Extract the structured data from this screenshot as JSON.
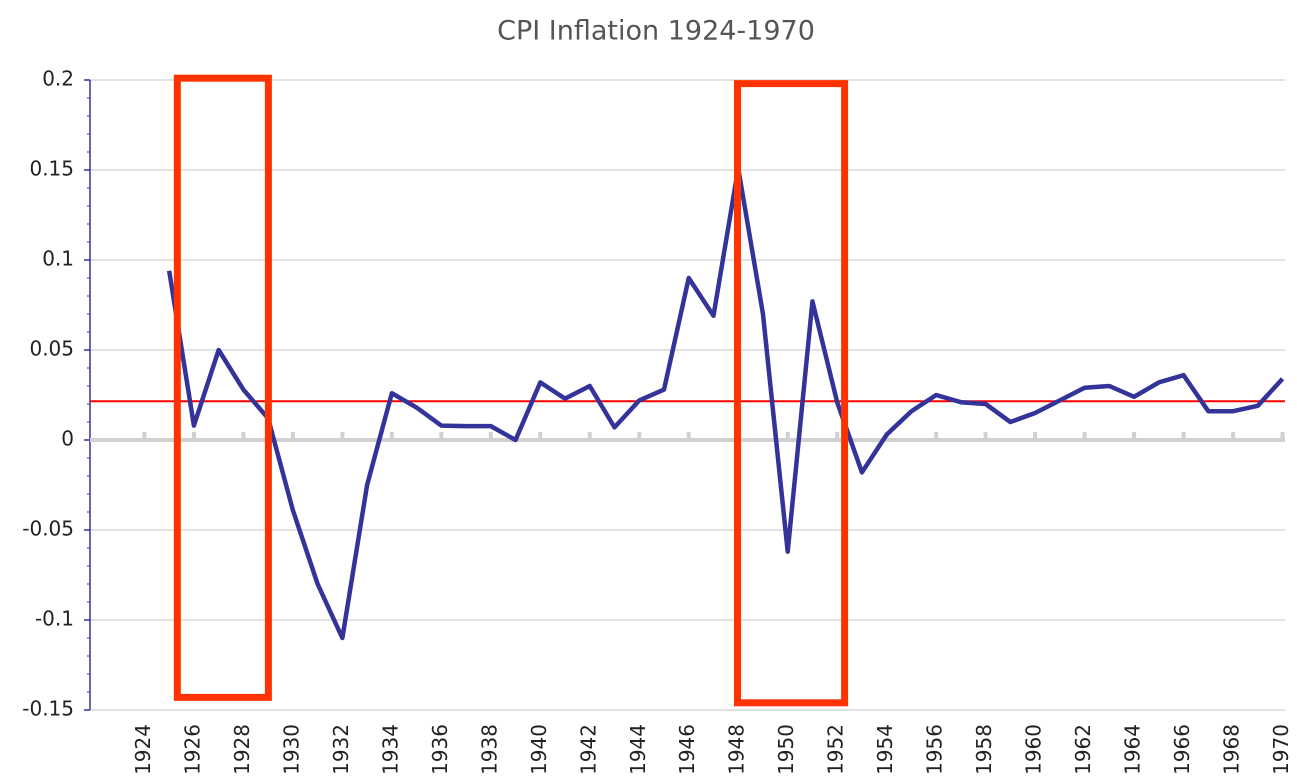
{
  "chart_data": {
    "type": "line",
    "title": "CPI Inflation 1924-1970",
    "x": [
      1925,
      1926,
      1927,
      1928,
      1929,
      1930,
      1931,
      1932,
      1933,
      1934,
      1935,
      1936,
      1937,
      1938,
      1939,
      1940,
      1941,
      1942,
      1943,
      1944,
      1945,
      1946,
      1947,
      1948,
      1949,
      1950,
      1951,
      1952,
      1953,
      1954,
      1955,
      1956,
      1957,
      1958,
      1959,
      1960,
      1961,
      1962,
      1963,
      1964,
      1965,
      1966,
      1967,
      1968,
      1969,
      1970
    ],
    "series": [
      {
        "name": "CPI Inflation",
        "color": "#333399",
        "values": [
          0.094,
          0.008,
          0.05,
          0.028,
          0.012,
          -0.039,
          -0.08,
          -0.11,
          -0.025,
          0.026,
          0.018,
          0.008,
          0.0077,
          0.0077,
          0.0,
          0.032,
          0.023,
          0.03,
          0.007,
          0.022,
          0.028,
          0.09,
          0.069,
          0.151,
          0.07,
          -0.062,
          0.077,
          0.021,
          -0.018,
          0.003,
          0.016,
          0.025,
          0.021,
          0.02,
          0.01,
          0.015,
          0.022,
          0.029,
          0.03,
          0.024,
          0.032,
          0.036,
          0.016,
          0.016,
          0.019,
          0.034
        ]
      }
    ],
    "xlim": [
      1921.8,
      1970.1
    ],
    "xticks": [
      1924,
      1926,
      1928,
      1930,
      1932,
      1934,
      1936,
      1938,
      1940,
      1942,
      1944,
      1946,
      1948,
      1950,
      1952,
      1954,
      1956,
      1958,
      1960,
      1962,
      1964,
      1966,
      1968,
      1970
    ],
    "ylim": [
      -0.15,
      0.2
    ],
    "yticks": [
      -0.15,
      -0.1,
      -0.05,
      0,
      0.05,
      0.1,
      0.15,
      0.2
    ],
    "grid": true,
    "reference_line": {
      "value": 0.0215,
      "color": "#ff0000"
    },
    "highlight_boxes": [
      {
        "xlim": [
          1925.33,
          1929.01
        ],
        "ylim": [
          -0.143,
          0.201
        ],
        "color": "#ff3300"
      },
      {
        "xlim": [
          1947.97,
          1952.3
        ],
        "ylim": [
          -0.146,
          0.198
        ],
        "color": "#ff3300"
      }
    ]
  }
}
